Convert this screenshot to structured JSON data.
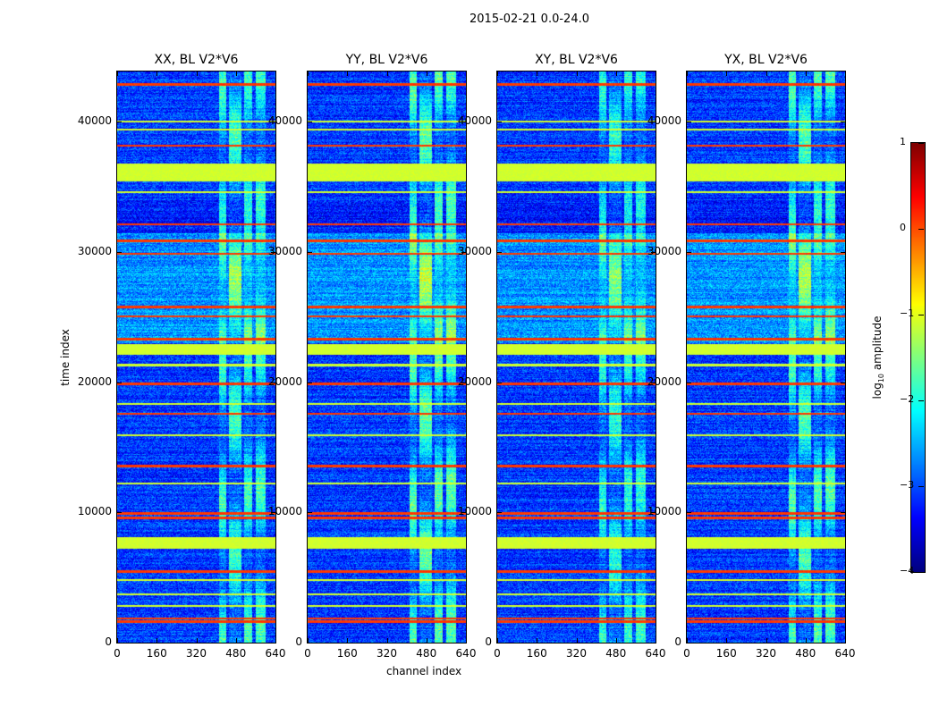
{
  "figure_title": "2015-02-21 0.0-24.0",
  "chart_data": {
    "type": "heatmap",
    "title": "2015-02-21 0.0-24.0",
    "xlabel": "channel index",
    "ylabel": "time index",
    "xlim": [
      0,
      640
    ],
    "ylim": [
      0,
      43860
    ],
    "xticks": [
      "0",
      "160",
      "320",
      "480",
      "640"
    ],
    "yticks": [
      "0",
      "10000",
      "20000",
      "30000",
      "40000"
    ],
    "panels": [
      {
        "title": "XX, BL V2*V6",
        "band_boost": 1.0
      },
      {
        "title": "YY, BL V2*V6",
        "band_boost": 1.15
      },
      {
        "title": "XY, BL V2*V6",
        "band_boost": 0.9
      },
      {
        "title": "YX, BL V2*V6",
        "band_boost": 1.05
      }
    ],
    "background_log10": -3.1,
    "bright_channel_bands": [
      [
        410,
        440
      ],
      [
        450,
        500
      ],
      [
        510,
        545
      ],
      [
        560,
        600
      ]
    ],
    "rfi_rows_red": [
      42900,
      38200,
      32150,
      30900,
      29900,
      25800,
      25100,
      23350,
      19900,
      17600,
      13600,
      9950,
      9600,
      5500,
      1900,
      1650
    ],
    "rfi_rows_yellow": [
      [
        35500,
        36800
      ],
      [
        34600,
        34700
      ],
      [
        40000,
        40100
      ],
      [
        39400,
        39500
      ],
      [
        22200,
        22900
      ],
      [
        21300,
        21400
      ],
      [
        18300,
        18400
      ],
      [
        15900,
        16000
      ],
      [
        12200,
        12300
      ],
      [
        7300,
        8100
      ],
      [
        4800,
        4900
      ],
      [
        3700,
        3800
      ],
      [
        2800,
        2900
      ]
    ],
    "colorbar": {
      "label": "log10 amplitude",
      "range": [
        -4,
        1
      ],
      "ticks": [
        "1",
        "0",
        "−1",
        "−2",
        "−3",
        "−4"
      ],
      "colormap": "jet"
    }
  }
}
